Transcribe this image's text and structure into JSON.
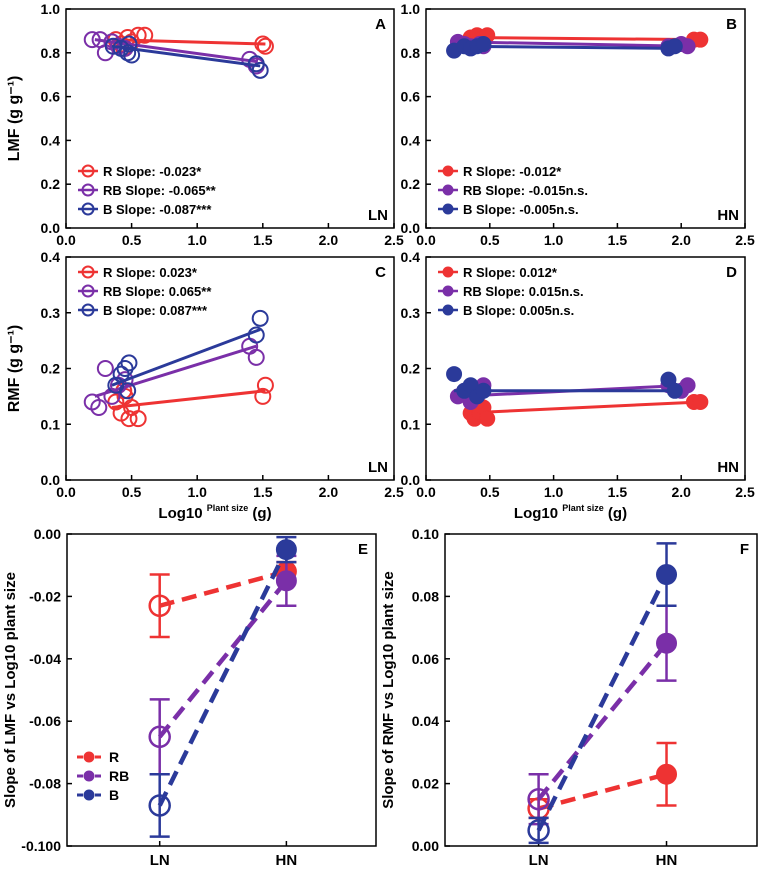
{
  "colors": {
    "R": "#ee3333",
    "RB": "#7a2fa8",
    "B": "#2b3a9a",
    "axis": "#000000"
  },
  "chart_data": [
    {
      "id": "A",
      "type": "scatter",
      "panel_label": "A",
      "corner_tag": "LN",
      "xlim": [
        0,
        2.5
      ],
      "ylim": [
        0,
        1.0
      ],
      "xticks": [
        "0.0",
        "0.5",
        "1.0",
        "1.5",
        "2.0",
        "2.5"
      ],
      "yticks": [
        "0.0",
        "0.2",
        "0.4",
        "0.6",
        "0.8",
        "1.0"
      ],
      "ylabel": "LMF (g g⁻¹)",
      "xlabel": "",
      "marker": "open",
      "legend": [
        {
          "key": "R",
          "text": "R Slope: -0.023*"
        },
        {
          "key": "RB",
          "text": "RB Slope: -0.065**"
        },
        {
          "key": "B",
          "text": "B Slope: -0.087***"
        }
      ],
      "series": [
        {
          "name": "R",
          "color_key": "R",
          "points": [
            [
              0.38,
              0.86
            ],
            [
              0.42,
              0.84
            ],
            [
              0.47,
              0.87
            ],
            [
              0.5,
              0.85
            ],
            [
              0.55,
              0.88
            ],
            [
              0.6,
              0.88
            ],
            [
              0.44,
              0.82
            ],
            [
              1.5,
              0.84
            ],
            [
              1.52,
              0.83
            ]
          ],
          "line": [
            [
              0.35,
              0.86
            ],
            [
              1.52,
              0.84
            ]
          ]
        },
        {
          "name": "RB",
          "color_key": "RB",
          "points": [
            [
              0.2,
              0.86
            ],
            [
              0.26,
              0.86
            ],
            [
              0.3,
              0.8
            ],
            [
              0.35,
              0.85
            ],
            [
              0.4,
              0.83
            ],
            [
              0.45,
              0.82
            ],
            [
              1.4,
              0.77
            ],
            [
              1.45,
              0.74
            ]
          ],
          "line": [
            [
              0.22,
              0.86
            ],
            [
              1.45,
              0.76
            ]
          ]
        },
        {
          "name": "B",
          "color_key": "B",
          "points": [
            [
              0.36,
              0.83
            ],
            [
              0.42,
              0.82
            ],
            [
              0.47,
              0.8
            ],
            [
              0.5,
              0.79
            ],
            [
              0.48,
              0.84
            ],
            [
              1.45,
              0.75
            ],
            [
              1.48,
              0.72
            ]
          ],
          "line": [
            [
              0.35,
              0.83
            ],
            [
              1.48,
              0.74
            ]
          ]
        }
      ]
    },
    {
      "id": "B",
      "type": "scatter",
      "panel_label": "B",
      "corner_tag": "HN",
      "xlim": [
        0,
        2.5
      ],
      "ylim": [
        0,
        1.0
      ],
      "xticks": [
        "0.0",
        "0.5",
        "1.0",
        "1.5",
        "2.0",
        "2.5"
      ],
      "yticks": [
        "0.0",
        "0.2",
        "0.4",
        "0.6",
        "0.8",
        "1.0"
      ],
      "ylabel": "",
      "xlabel": "",
      "marker": "filled",
      "legend": [
        {
          "key": "R",
          "text": "R Slope: -0.012*"
        },
        {
          "key": "RB",
          "text": "RB Slope: -0.015n.s."
        },
        {
          "key": "B",
          "text": "B Slope: -0.005n.s."
        }
      ],
      "series": [
        {
          "name": "R",
          "color_key": "R",
          "points": [
            [
              0.35,
              0.87
            ],
            [
              0.4,
              0.88
            ],
            [
              0.42,
              0.86
            ],
            [
              0.45,
              0.87
            ],
            [
              0.48,
              0.88
            ],
            [
              2.1,
              0.86
            ],
            [
              2.15,
              0.86
            ]
          ],
          "line": [
            [
              0.3,
              0.87
            ],
            [
              2.15,
              0.86
            ]
          ]
        },
        {
          "name": "RB",
          "color_key": "RB",
          "points": [
            [
              0.25,
              0.85
            ],
            [
              0.3,
              0.84
            ],
            [
              0.35,
              0.83
            ],
            [
              0.42,
              0.84
            ],
            [
              0.45,
              0.83
            ],
            [
              1.9,
              0.83
            ],
            [
              2.0,
              0.84
            ],
            [
              2.05,
              0.83
            ]
          ],
          "line": [
            [
              0.25,
              0.85
            ],
            [
              2.05,
              0.83
            ]
          ]
        },
        {
          "name": "B",
          "color_key": "B",
          "points": [
            [
              0.22,
              0.81
            ],
            [
              0.3,
              0.83
            ],
            [
              0.35,
              0.82
            ],
            [
              0.4,
              0.83
            ],
            [
              0.45,
              0.84
            ],
            [
              1.9,
              0.82
            ],
            [
              1.95,
              0.83
            ]
          ],
          "line": [
            [
              0.22,
              0.83
            ],
            [
              1.95,
              0.82
            ]
          ]
        }
      ]
    },
    {
      "id": "C",
      "type": "scatter",
      "panel_label": "C",
      "corner_tag": "LN",
      "xlim": [
        0,
        2.5
      ],
      "ylim": [
        0,
        0.4
      ],
      "xticks": [
        "0.0",
        "0.5",
        "1.0",
        "1.5",
        "2.0",
        "2.5"
      ],
      "yticks": [
        "0.0",
        "0.1",
        "0.2",
        "0.3",
        "0.4"
      ],
      "ylabel": "RMF (g g⁻¹)",
      "xlabel": "Log10 ^Plant size (g)",
      "marker": "open",
      "legend": [
        {
          "key": "R",
          "text": "R Slope: 0.023*"
        },
        {
          "key": "RB",
          "text": "RB Slope: 0.065**"
        },
        {
          "key": "B",
          "text": "B Slope: 0.087***"
        }
      ],
      "series": [
        {
          "name": "R",
          "color_key": "R",
          "points": [
            [
              0.38,
              0.14
            ],
            [
              0.42,
              0.12
            ],
            [
              0.45,
              0.15
            ],
            [
              0.48,
              0.11
            ],
            [
              0.5,
              0.13
            ],
            [
              0.55,
              0.11
            ],
            [
              0.44,
              0.16
            ],
            [
              1.5,
              0.15
            ],
            [
              1.52,
              0.17
            ]
          ],
          "line": [
            [
              0.35,
              0.13
            ],
            [
              1.52,
              0.16
            ]
          ]
        },
        {
          "name": "RB",
          "color_key": "RB",
          "points": [
            [
              0.2,
              0.14
            ],
            [
              0.25,
              0.13
            ],
            [
              0.3,
              0.2
            ],
            [
              0.35,
              0.15
            ],
            [
              0.4,
              0.17
            ],
            [
              0.45,
              0.18
            ],
            [
              1.4,
              0.24
            ],
            [
              1.45,
              0.22
            ]
          ],
          "line": [
            [
              0.22,
              0.15
            ],
            [
              1.45,
              0.24
            ]
          ]
        },
        {
          "name": "B",
          "color_key": "B",
          "points": [
            [
              0.38,
              0.17
            ],
            [
              0.42,
              0.19
            ],
            [
              0.45,
              0.2
            ],
            [
              0.48,
              0.21
            ],
            [
              0.47,
              0.16
            ],
            [
              1.45,
              0.26
            ],
            [
              1.48,
              0.29
            ]
          ],
          "line": [
            [
              0.35,
              0.17
            ],
            [
              1.48,
              0.27
            ]
          ]
        }
      ]
    },
    {
      "id": "D",
      "type": "scatter",
      "panel_label": "D",
      "corner_tag": "HN",
      "xlim": [
        0,
        2.5
      ],
      "ylim": [
        0,
        0.4
      ],
      "xticks": [
        "0.0",
        "0.5",
        "1.0",
        "1.5",
        "2.0",
        "2.5"
      ],
      "yticks": [
        "0.0",
        "0.1",
        "0.2",
        "0.3",
        "0.4"
      ],
      "ylabel": "",
      "xlabel": "Log10 ^Plant size (g)",
      "marker": "filled",
      "legend": [
        {
          "key": "R",
          "text": "R Slope: 0.012*"
        },
        {
          "key": "RB",
          "text": "RB Slope: 0.015n.s."
        },
        {
          "key": "B",
          "text": "B Slope: 0.005n.s."
        }
      ],
      "series": [
        {
          "name": "R",
          "color_key": "R",
          "points": [
            [
              0.35,
              0.12
            ],
            [
              0.38,
              0.11
            ],
            [
              0.42,
              0.12
            ],
            [
              0.45,
              0.13
            ],
            [
              0.48,
              0.11
            ],
            [
              0.4,
              0.14
            ],
            [
              2.1,
              0.14
            ],
            [
              2.15,
              0.14
            ]
          ],
          "line": [
            [
              0.3,
              0.12
            ],
            [
              2.15,
              0.14
            ]
          ]
        },
        {
          "name": "RB",
          "color_key": "RB",
          "points": [
            [
              0.25,
              0.15
            ],
            [
              0.3,
              0.16
            ],
            [
              0.35,
              0.14
            ],
            [
              0.4,
              0.15
            ],
            [
              0.45,
              0.17
            ],
            [
              1.9,
              0.17
            ],
            [
              2.0,
              0.16
            ],
            [
              2.05,
              0.17
            ]
          ],
          "line": [
            [
              0.25,
              0.15
            ],
            [
              2.05,
              0.17
            ]
          ]
        },
        {
          "name": "B",
          "color_key": "B",
          "points": [
            [
              0.22,
              0.19
            ],
            [
              0.3,
              0.16
            ],
            [
              0.35,
              0.17
            ],
            [
              0.4,
              0.15
            ],
            [
              0.45,
              0.16
            ],
            [
              1.9,
              0.18
            ],
            [
              1.95,
              0.16
            ]
          ],
          "line": [
            [
              0.22,
              0.16
            ],
            [
              1.95,
              0.16
            ]
          ]
        }
      ]
    },
    {
      "id": "E",
      "type": "line",
      "panel_label": "E",
      "categories": [
        "LN",
        "HN"
      ],
      "ylim": [
        -0.1,
        0.0
      ],
      "yticks": [
        "-0.100",
        "-0.08",
        "-0.06",
        "-0.04",
        "-0.02",
        "0.00"
      ],
      "ytick_values": [
        -0.1,
        -0.08,
        -0.06,
        -0.04,
        -0.02,
        0.0
      ],
      "ylabel": "Slope of LMF vs Log10 plant size",
      "legend": [
        {
          "key": "R",
          "text": "R"
        },
        {
          "key": "RB",
          "text": "RB"
        },
        {
          "key": "B",
          "text": "B"
        }
      ],
      "series": [
        {
          "name": "R",
          "color_key": "R",
          "values": [
            -0.023,
            -0.012
          ],
          "errors": [
            0.01,
            0.003
          ]
        },
        {
          "name": "RB",
          "color_key": "RB",
          "values": [
            -0.065,
            -0.015
          ],
          "errors": [
            0.012,
            0.008
          ]
        },
        {
          "name": "B",
          "color_key": "B",
          "values": [
            -0.087,
            -0.005
          ],
          "errors": [
            0.01,
            0.004
          ]
        }
      ]
    },
    {
      "id": "F",
      "type": "line",
      "panel_label": "F",
      "categories": [
        "LN",
        "HN"
      ],
      "ylim": [
        0.0,
        0.1
      ],
      "yticks": [
        "0.00",
        "0.02",
        "0.04",
        "0.06",
        "0.08",
        "0.10"
      ],
      "ytick_values": [
        0.0,
        0.02,
        0.04,
        0.06,
        0.08,
        0.1
      ],
      "ylabel": "Slope of RMF vs Log10 plant size",
      "legend": [],
      "series": [
        {
          "name": "R",
          "color_key": "R",
          "values": [
            0.012,
            0.023
          ],
          "errors": [
            0.003,
            0.01
          ]
        },
        {
          "name": "RB",
          "color_key": "RB",
          "values": [
            0.015,
            0.065
          ],
          "errors": [
            0.008,
            0.012
          ]
        },
        {
          "name": "B",
          "color_key": "B",
          "values": [
            0.005,
            0.087
          ],
          "errors": [
            0.004,
            0.01
          ]
        }
      ]
    }
  ]
}
